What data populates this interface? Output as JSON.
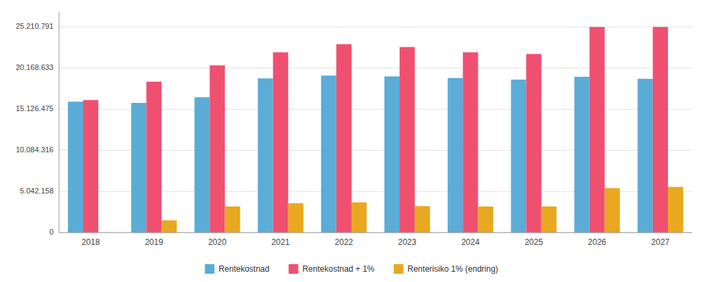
{
  "chart_data": {
    "type": "bar",
    "categories": [
      "2018",
      "2019",
      "2020",
      "2021",
      "2022",
      "2023",
      "2024",
      "2025",
      "2026",
      "2027"
    ],
    "series": [
      {
        "name": "Rentekostnad",
        "color": "#5BACD6",
        "values": [
          16050000,
          15900000,
          16600000,
          18900000,
          19250000,
          19150000,
          18950000,
          18750000,
          19100000,
          18850000
        ]
      },
      {
        "name": "Rentekostnad + 1%",
        "color": "#F05070",
        "values": [
          16250000,
          18500000,
          20500000,
          22100000,
          23100000,
          22750000,
          22100000,
          21900000,
          25210791,
          25210791
        ]
      },
      {
        "name": "Renterisiko 1% (endring)",
        "color": "#E8A820",
        "values": [
          0,
          1500000,
          3200000,
          3600000,
          3700000,
          3250000,
          3200000,
          3200000,
          5450000,
          5600000
        ]
      }
    ],
    "ylim": [
      0,
      27000000
    ],
    "yticks": [
      0,
      {
        "value": 5042158,
        "label": "5.042.158"
      },
      {
        "value": 10084316,
        "label": "10.084.316"
      },
      {
        "value": 15126475,
        "label": "15.126.475"
      },
      {
        "value": 20168633,
        "label": "20.168.633"
      },
      {
        "value": 25210791,
        "label": "25.210.791"
      }
    ],
    "grid": true,
    "legend": "bottom"
  }
}
